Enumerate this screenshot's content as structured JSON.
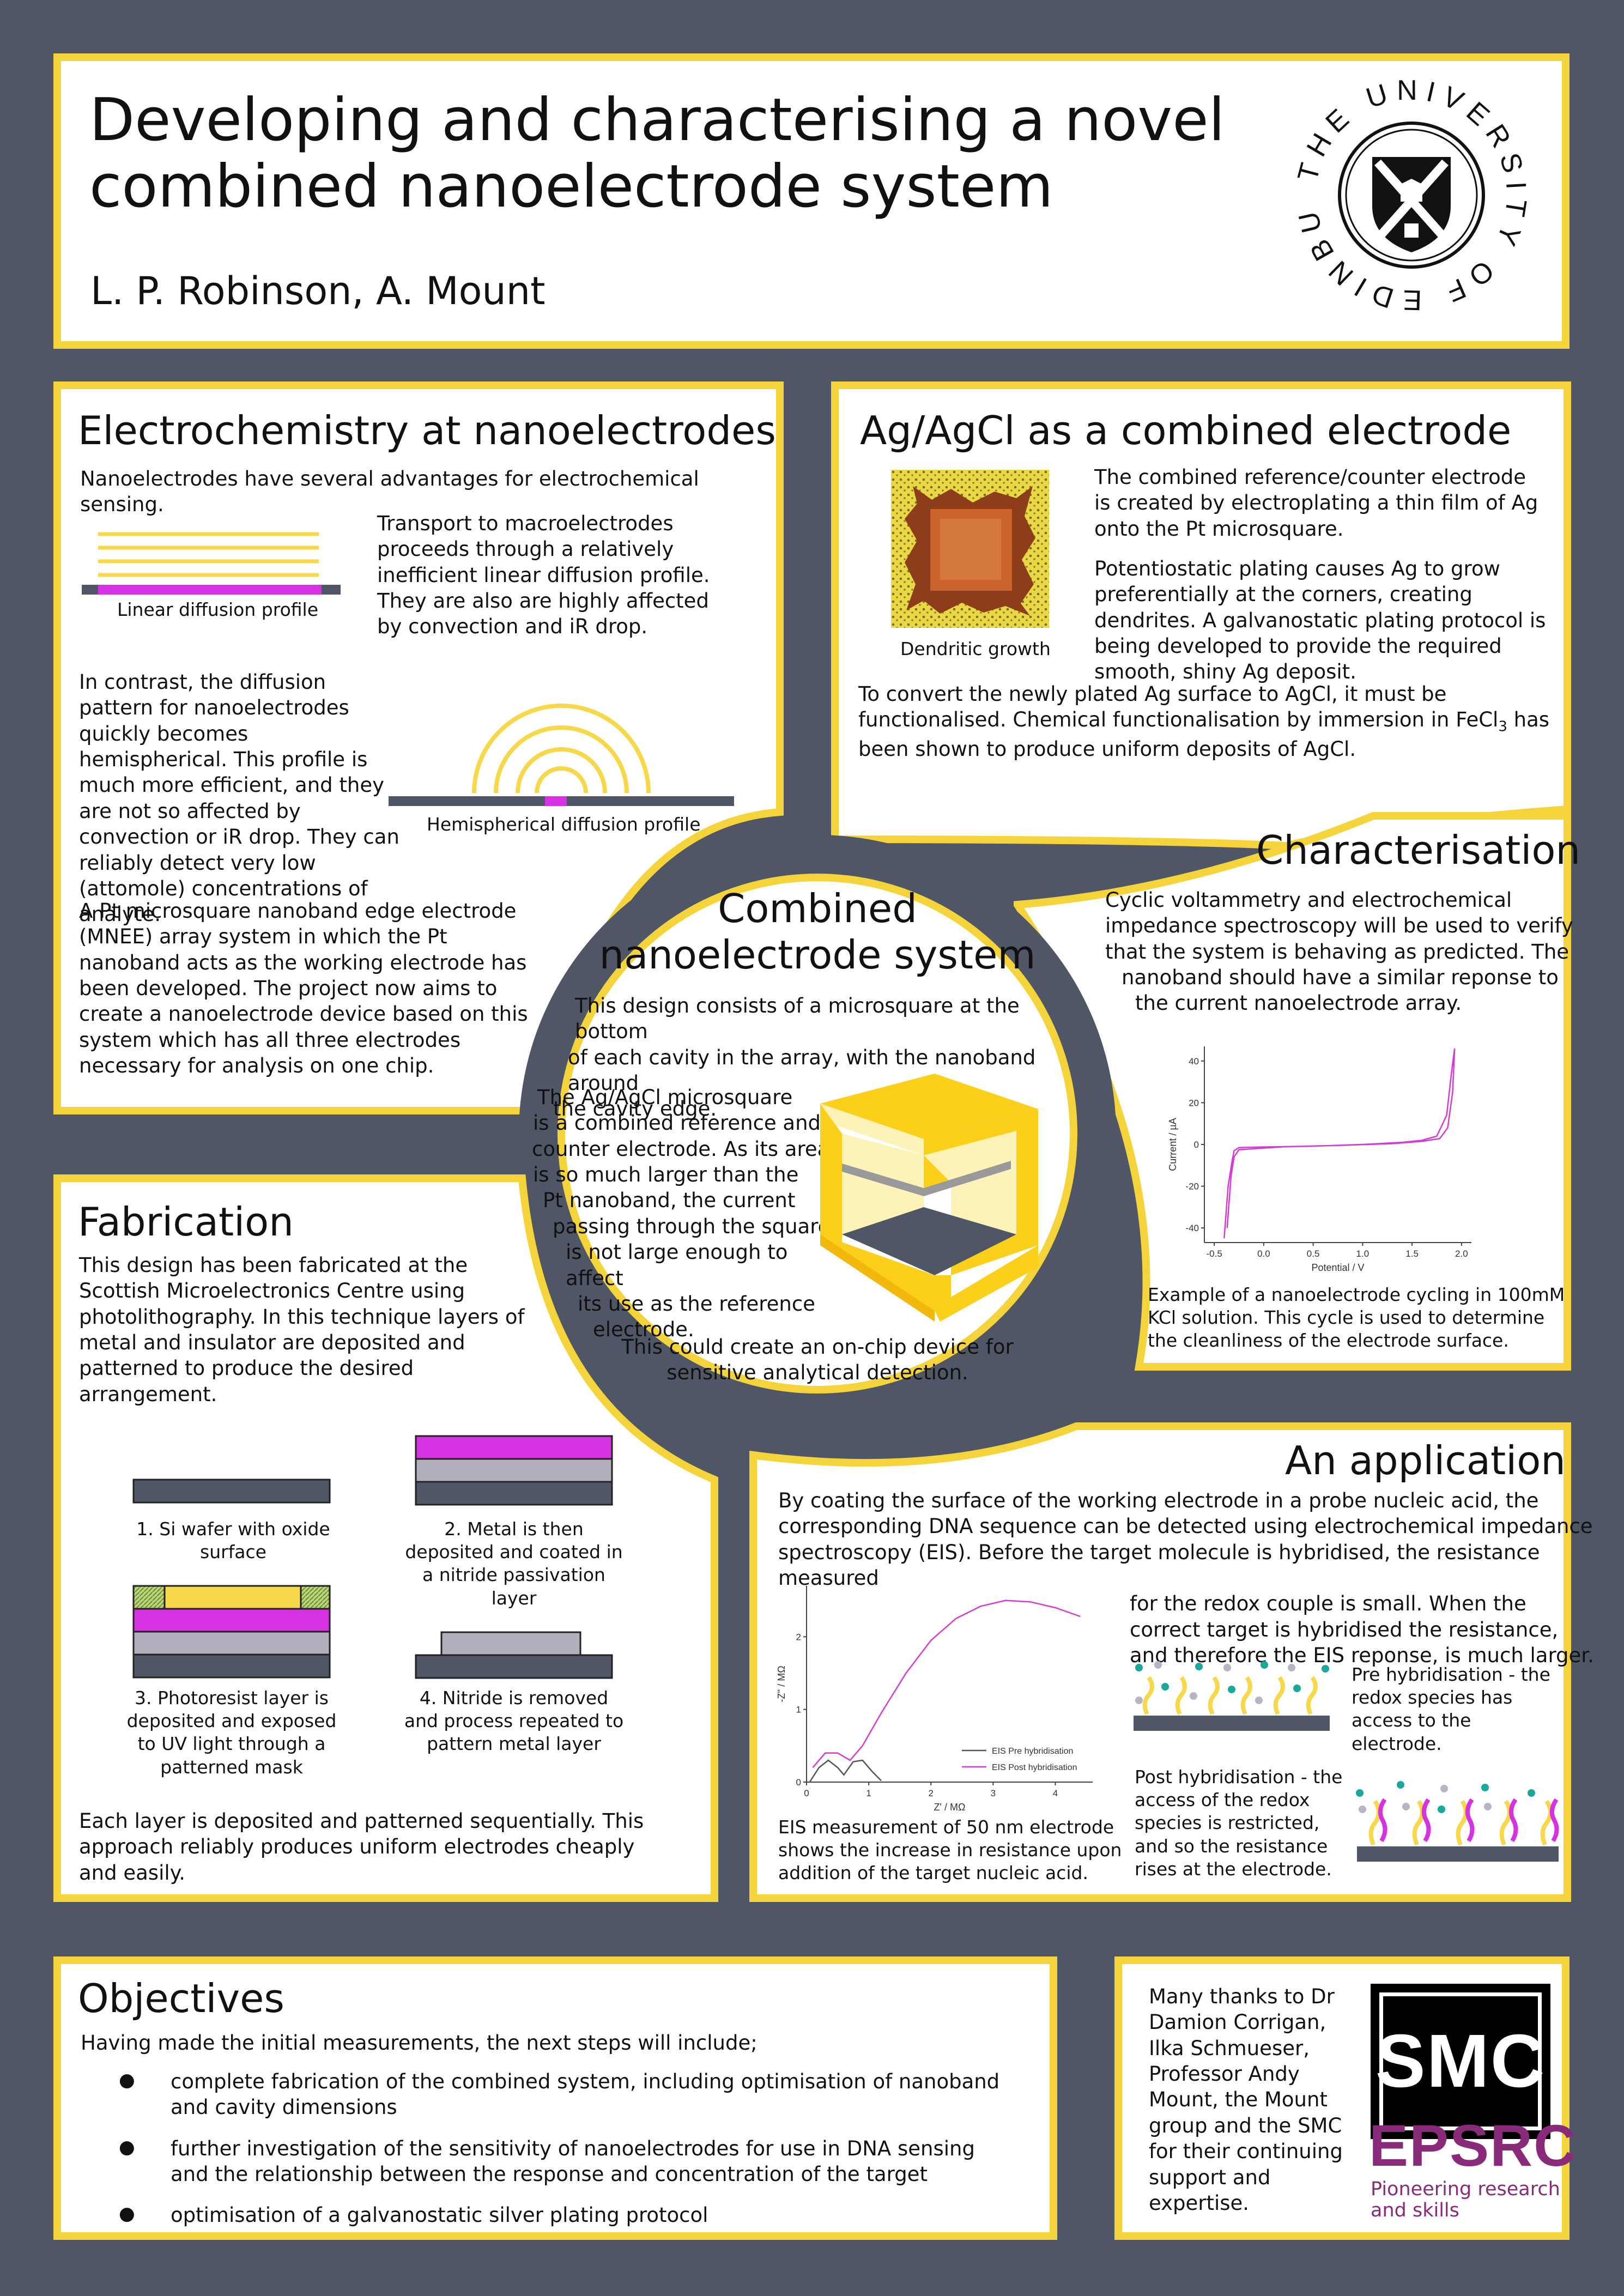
{
  "header": {
    "title_line1": "Developing and characterising a novel",
    "title_line2": "combined nanoelectrode system",
    "authors": "L. P. Robinson, A. Mount",
    "logo_ring_text": "THE UNIVERSITY OF EDINBURGH"
  },
  "electrochem": {
    "heading": "Electrochemistry at nanoelectrodes",
    "intro": "Nanoelectrodes have several advantages for electrochemical sensing.",
    "linear_caption": "Linear diffusion profile",
    "macro_text": "Transport to macroelectrodes proceeds through a relatively inefficient linear diffusion profile. They are also are highly affected by convection and iR drop.",
    "contrast_text": "In contrast, the diffusion pattern for nanoelectrodes quickly becomes hemispherical. This profile is much more efficient, and they are not so affected by convection or iR drop. They can reliably detect very low (attomole) concentrations of analyte.",
    "hemi_caption": "Hemispherical diffusion profile",
    "mnee_text": "A Pt microsquare nanoband edge electrode (MNEE) array system in which the Pt nanoband acts as the working electrode has been developed. The project now aims to create a nanoelectrode device based on this system which has all three electrodes necessary for analysis on one chip."
  },
  "agcl": {
    "heading": "Ag/AgCl as a combined electrode",
    "para1": "The combined reference/counter electrode is created by electroplating a thin film of Ag onto the Pt microsquare.",
    "para2": "Potentiostatic plating causes Ag to grow preferentially at the corners, creating dendrites. A galvanostatic plating protocol is being developed to provide the required smooth, shiny Ag deposit.",
    "image_caption": "Dendritic growth",
    "para3_a": "To convert the newly plated Ag surface to AgCl, it must be functionalised. Chemical functionalisation by immersion in FeCl",
    "para3_sub": "3",
    "para3_b": " has been shown to produce uniform deposits of AgCl."
  },
  "characterisation": {
    "heading": "Characterisation",
    "body_l1": "Cyclic voltammetry and electrochemical",
    "body_l2": "impedance spectroscopy will be used to verify",
    "body_l3": "that the system is behaving as predicted. The",
    "body_l4": "nanoband should have a similar reponse to",
    "body_l5": "the current nanoelectrode array.",
    "caption": "Example of a nanoelectrode cycling in 100mM KCl solution. This cycle is used to determine the cleanliness of the electrode surface."
  },
  "combined": {
    "heading_l1": "Combined",
    "heading_l2": "nanoelectrode system",
    "para1_l1": "This design consists of a microsquare at the bottom",
    "para1_l2": "of each cavity in the array, with the nanoband around",
    "para1_l3": "the cavity edge.",
    "para2": [
      "The Ag/AgCl microsquare",
      "is a combined reference and",
      "counter electrode. As its area",
      "is so much larger than the",
      "Pt nanoband, the current",
      "passing through the square",
      "is not large enough to affect",
      "its use as the reference",
      "electrode."
    ],
    "para3_l1": "This could create an on-chip device for",
    "para3_l2": "sensitive analytical detection."
  },
  "fabrication": {
    "heading": "Fabrication",
    "intro": "This design has been fabricated at the Scottish Microelectronics Centre using photolithography. In this technique layers of metal and insulator are deposited and patterned to produce the desired arrangement.",
    "step1": "1. Si wafer with oxide surface",
    "step2": "2. Metal is then deposited and coated in a nitride passivation layer",
    "step3": "3. Photoresist layer is deposited and exposed to UV light through a patterned mask",
    "step4": "4. Nitride is removed and process repeated to pattern metal layer",
    "outro": "Each layer is deposited and patterned sequentially. This approach reliably produces uniform electrodes cheaply and easily."
  },
  "application": {
    "heading": "An application",
    "para_l1": "By coating the surface of the working electrode in a probe nucleic acid, the",
    "para_l2": "corresponding DNA sequence can be detected using electrochemical impedance",
    "para_l3": "spectroscopy (EIS). Before the target molecule is hybridised, the resistance measured",
    "para_l4": "for the redox couple is small. When the",
    "para_l5": "correct target is hybridised the resistance,",
    "para_l6": "and therefore the EIS reponse, is much larger.",
    "eis_caption": "EIS measurement of 50 nm electrode shows the increase in resistance upon addition of the target nucleic acid.",
    "pre_text": "Pre hybridisation - the redox species has access to the electrode.",
    "post_text": "Post hybridisation - the access of the redox species is restricted, and so the resistance rises at the electrode."
  },
  "objectives": {
    "heading": "Objectives",
    "intro": "Having made the initial measurements, the next steps will include;",
    "items": [
      "complete fabrication of the combined system, including optimisation of nanoband and cavity dimensions",
      "further investigation of the sensitivity of nanoelectrodes for use in DNA sensing and the relationship between the response and concentration of the target",
      "optimisation of a galvanostatic silver plating protocol"
    ]
  },
  "thanks": {
    "text": "Many thanks to Dr Damion Corrigan, Ilka Schmueser, Professor Andy Mount, the Mount group and the SMC for their continuing support and expertise.",
    "smc_logo": "SMC",
    "epsrc_logo": "EPSRC",
    "epsrc_tagline_l1": "Pioneering research",
    "epsrc_tagline_l2": "and skills"
  },
  "chart_data": [
    {
      "type": "line",
      "title": "",
      "xlabel": "Potential / V",
      "ylabel": "Current / µA",
      "xlim": [
        -0.6,
        2.1
      ],
      "ylim": [
        -47,
        47
      ],
      "xticks": [
        "-0.5",
        "0.0",
        "0.5",
        "1.0",
        "1.5",
        "2.0"
      ],
      "yticks": [
        "40",
        "20",
        "0",
        "-20",
        "-40"
      ],
      "colors": [
        "#d63ad6"
      ],
      "series": [
        {
          "x": [
            -0.4,
            -0.36,
            -0.32,
            -0.3,
            -0.25,
            0.0,
            0.5,
            1.0,
            1.4,
            1.6,
            1.75,
            1.85,
            1.9,
            1.93,
            1.91,
            1.86,
            1.78,
            1.6,
            1.3,
            0.8,
            0.2,
            -0.25,
            -0.3,
            -0.33,
            -0.37
          ],
          "y": [
            -45,
            -20,
            -8,
            -3,
            -1.5,
            -1.2,
            -0.8,
            0.0,
            1.0,
            2.0,
            4.0,
            14.0,
            35.0,
            46.0,
            25.0,
            8.0,
            2.8,
            1.5,
            0.4,
            -0.4,
            -1.1,
            -2.5,
            -6.0,
            -15.0,
            -40.0
          ]
        }
      ]
    },
    {
      "type": "line",
      "title": "",
      "xlabel": "Z' / MΩ",
      "ylabel": "-Z'' / MΩ",
      "xlim": [
        0,
        4.6
      ],
      "ylim": [
        0,
        2.7
      ],
      "xticks": [
        "0",
        "1",
        "2",
        "3",
        "4"
      ],
      "yticks": [
        "0",
        "1",
        "2"
      ],
      "colors": [
        "#555555",
        "#d63ad6"
      ],
      "series": [
        {
          "name": "EIS Pre hybridisation",
          "x": [
            0.05,
            0.2,
            0.35,
            0.5,
            0.6,
            0.75,
            0.9,
            1.05,
            1.2
          ],
          "y": [
            0.0,
            0.2,
            0.3,
            0.2,
            0.1,
            0.28,
            0.3,
            0.15,
            0.02
          ]
        },
        {
          "name": "EIS Post hybridisation",
          "x": [
            0.1,
            0.3,
            0.5,
            0.7,
            0.9,
            1.2,
            1.6,
            2.0,
            2.4,
            2.8,
            3.2,
            3.6,
            4.0,
            4.4
          ],
          "y": [
            0.2,
            0.4,
            0.4,
            0.3,
            0.5,
            0.95,
            1.5,
            1.95,
            2.25,
            2.42,
            2.5,
            2.48,
            2.4,
            2.28
          ]
        }
      ]
    }
  ]
}
